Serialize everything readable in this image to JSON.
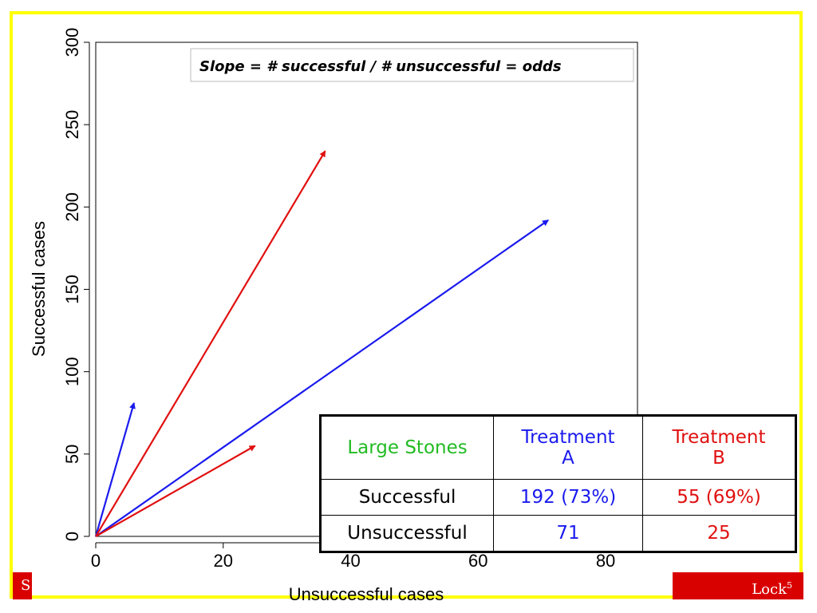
{
  "chart_data": {
    "type": "vector",
    "annotation": "Slope = # successful / # unsuccessful = odds",
    "xlabel": "Unsuccessful cases",
    "ylabel": "Successful cases",
    "xlim": [
      0,
      85
    ],
    "ylim": [
      0,
      300
    ],
    "xticks": [
      0,
      20,
      40,
      60,
      80
    ],
    "yticks": [
      0,
      50,
      100,
      150,
      200,
      250,
      300
    ],
    "grid": false,
    "vectors": [
      {
        "from": [
          0,
          0
        ],
        "to": [
          6,
          81
        ],
        "color": "#1a1aee"
      },
      {
        "from": [
          0,
          0
        ],
        "to": [
          36,
          234
        ],
        "color": "#e01010"
      },
      {
        "from": [
          0,
          0
        ],
        "to": [
          71,
          192
        ],
        "color": "#1a1aee"
      },
      {
        "from": [
          0,
          0
        ],
        "to": [
          25,
          55
        ],
        "color": "#e01010"
      }
    ]
  },
  "table": {
    "corner": "Large Stones",
    "col_a_line1": "Treatment",
    "col_a_line2": "A",
    "col_b_line1": "Treatment",
    "col_b_line2": "B",
    "rows": [
      {
        "label": "Successful",
        "a": "192 (73%)",
        "b": "55 (69%)"
      },
      {
        "label": "Unsuccessful",
        "a": "71",
        "b": "25"
      }
    ],
    "colors": {
      "corner": "#22bb22",
      "a": "#1a1aee",
      "b": "#e01010"
    }
  },
  "footer": {
    "left": "S",
    "right": "Lock",
    "right_sup": "5"
  },
  "colors": {
    "frame": "#ffff00",
    "footer_bg": "#d90000"
  }
}
